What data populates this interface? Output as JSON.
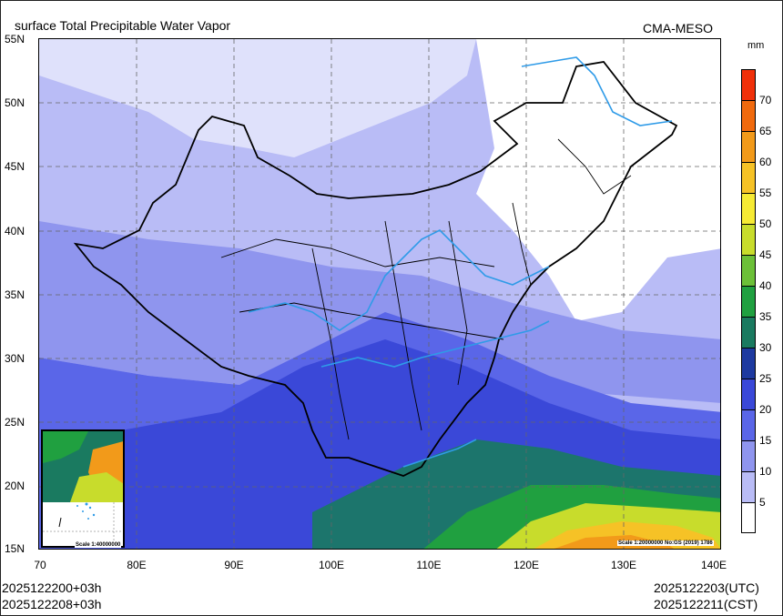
{
  "header": {
    "title": "surface Total Precipitable Water Vapor",
    "source": "CMA-MESO",
    "unit": "mm"
  },
  "axes": {
    "lat_labels": [
      "55N",
      "50N",
      "45N",
      "40N",
      "35N",
      "30N",
      "25N",
      "20N",
      "15N"
    ],
    "lon_labels": [
      "70",
      "80E",
      "90E",
      "100E",
      "110E",
      "120E",
      "130E",
      "140E"
    ],
    "lon_range": [
      70,
      140
    ],
    "lat_range": [
      15,
      55
    ]
  },
  "colorbar": {
    "levels": [
      "70",
      "65",
      "60",
      "55",
      "50",
      "45",
      "40",
      "35",
      "30",
      "25",
      "20",
      "15",
      "10",
      "5"
    ],
    "colors": [
      "#f0300a",
      "#f06a0e",
      "#f29a1a",
      "#f6c226",
      "#f6ea34",
      "#c8dc2c",
      "#6cc038",
      "#20a040",
      "#1a7a60",
      "#1e3aa0",
      "#3a48d8",
      "#5a66e8",
      "#8f95ee",
      "#b9bcf6",
      "#ffffff"
    ]
  },
  "scales": {
    "inset": "Scale 1:40000000",
    "main": "Scale 1:20000000 No:GS (2019) 1786"
  },
  "footer": {
    "init_utc": "2025122200+03h",
    "init_cst": "2025122208+03h",
    "valid_utc": "2025122203(UTC)",
    "valid_cst": "2025122211(CST)"
  },
  "colors": {
    "land_low": "#b9bcf6",
    "mid": "#8f95ee",
    "deep": "#3a48d8",
    "rivers": "#2f9be8",
    "borders": "#000000"
  }
}
